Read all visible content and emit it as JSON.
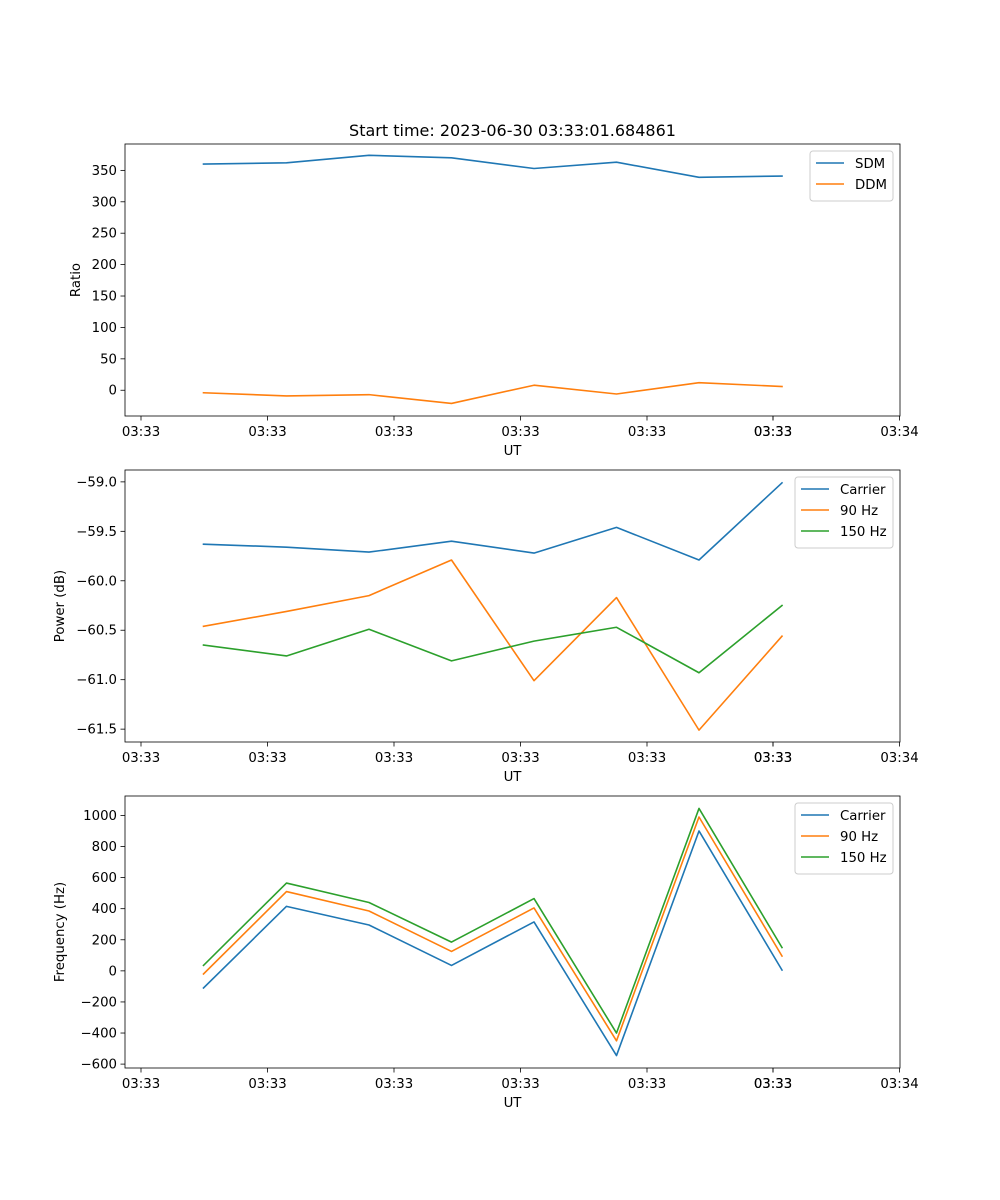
{
  "figure_title": "Start time: 2023-06-30 03:33:01.684861",
  "chart_data": [
    {
      "type": "line",
      "xlabel": "UT",
      "ylabel": "Ratio",
      "x_tick_labels": [
        "03:33",
        "03:33",
        "03:33",
        "03:33",
        "03:33",
        "03:33",
        "03:33"
      ],
      "x_tick_last": "03:34",
      "ylim": [
        -41,
        392
      ],
      "y_ticks": [
        0,
        50,
        100,
        150,
        200,
        250,
        300,
        350
      ],
      "y_tick_labels": [
        "0",
        "50",
        "100",
        "150",
        "200",
        "250",
        "300",
        "350"
      ],
      "legend_position": "top-right",
      "grid": false,
      "series": [
        {
          "name": "SDM",
          "color": "#1f77b4",
          "values": [
            360,
            362,
            374,
            370,
            353,
            363,
            339,
            341
          ]
        },
        {
          "name": "DDM",
          "color": "#ff7f0e",
          "values": [
            -4,
            -9,
            -7,
            -21,
            8,
            -6,
            12,
            6
          ]
        }
      ]
    },
    {
      "type": "line",
      "xlabel": "UT",
      "ylabel": "Power (dB)",
      "x_tick_labels": [
        "03:33",
        "03:33",
        "03:33",
        "03:33",
        "03:33",
        "03:33",
        "03:33"
      ],
      "x_tick_last": "03:34",
      "ylim": [
        -61.63,
        -58.88
      ],
      "y_ticks": [
        -61.5,
        -61.0,
        -60.5,
        -60.0,
        -59.5,
        -59.0
      ],
      "y_tick_labels": [
        "−61.5",
        "−61.0",
        "−60.5",
        "−60.0",
        "−59.5",
        "−59.0"
      ],
      "legend_position": "top-right",
      "grid": false,
      "series": [
        {
          "name": "Carrier",
          "color": "#1f77b4",
          "values": [
            -59.63,
            -59.66,
            -59.71,
            -59.6,
            -59.72,
            -59.46,
            -59.79,
            -59.01
          ]
        },
        {
          "name": "90 Hz",
          "color": "#ff7f0e",
          "values": [
            -60.46,
            -60.31,
            -60.15,
            -59.79,
            -61.01,
            -60.17,
            -61.51,
            -60.56
          ]
        },
        {
          "name": "150 Hz",
          "color": "#2ca02c",
          "values": [
            -60.65,
            -60.76,
            -60.49,
            -60.81,
            -60.61,
            -60.47,
            -60.93,
            -60.25
          ]
        }
      ]
    },
    {
      "type": "line",
      "xlabel": "UT",
      "ylabel": "Frequency (Hz)",
      "x_tick_labels": [
        "03:33",
        "03:33",
        "03:33",
        "03:33",
        "03:33",
        "03:33",
        "03:33"
      ],
      "x_tick_last": "03:34",
      "ylim": [
        -625,
        1125
      ],
      "y_ticks": [
        -600,
        -400,
        -200,
        0,
        200,
        400,
        600,
        800,
        1000
      ],
      "y_tick_labels": [
        "−600",
        "−400",
        "−200",
        "0",
        "200",
        "400",
        "600",
        "800",
        "1000"
      ],
      "legend_position": "top-right",
      "grid": false,
      "series": [
        {
          "name": "Carrier",
          "color": "#1f77b4",
          "values": [
            -110,
            415,
            295,
            35,
            315,
            -545,
            900,
            5
          ]
        },
        {
          "name": "90 Hz",
          "color": "#ff7f0e",
          "values": [
            -20,
            510,
            385,
            125,
            405,
            -450,
            990,
            95
          ]
        },
        {
          "name": "150 Hz",
          "color": "#2ca02c",
          "values": [
            35,
            565,
            440,
            185,
            465,
            -400,
            1045,
            150
          ]
        }
      ]
    }
  ]
}
